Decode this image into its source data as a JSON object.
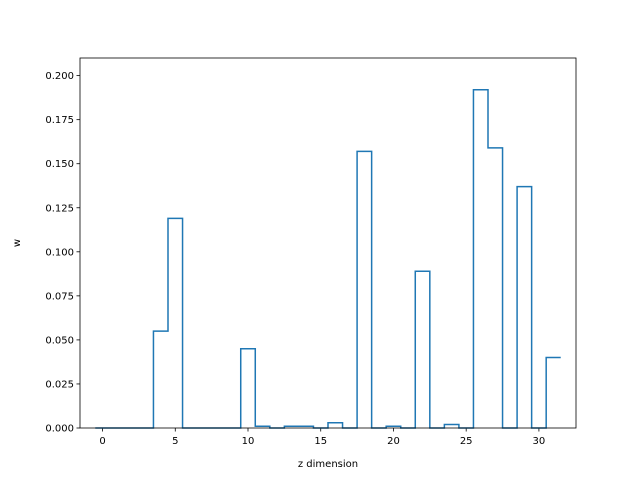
{
  "chart_data": {
    "type": "bar",
    "style": "step-outline",
    "xlabel": "z dimension",
    "ylabel": "w",
    "xlim": [
      -1.55,
      32.55
    ],
    "ylim": [
      0,
      0.21
    ],
    "xticks": [
      0,
      5,
      10,
      15,
      20,
      25,
      30
    ],
    "xtick_labels": [
      "0",
      "5",
      "10",
      "15",
      "20",
      "25",
      "30"
    ],
    "yticks": [
      0.0,
      0.025,
      0.05,
      0.075,
      0.1,
      0.125,
      0.15,
      0.175,
      0.2
    ],
    "ytick_labels": [
      "0.000",
      "0.025",
      "0.050",
      "0.075",
      "0.100",
      "0.125",
      "0.150",
      "0.175",
      "0.200"
    ],
    "x": [
      0,
      1,
      2,
      3,
      4,
      5,
      6,
      7,
      8,
      9,
      10,
      11,
      12,
      13,
      14,
      15,
      16,
      17,
      18,
      19,
      20,
      21,
      22,
      23,
      24,
      25,
      26,
      27,
      28,
      29,
      30,
      31
    ],
    "values": [
      0,
      0,
      0,
      0,
      0.055,
      0.119,
      0,
      0,
      0,
      0,
      0.045,
      0.001,
      0,
      0.001,
      0.001,
      0,
      0.003,
      0,
      0.157,
      0,
      0.001,
      0,
      0.089,
      0,
      0.002,
      0,
      0.192,
      0.159,
      0,
      0.137,
      0,
      0.04
    ],
    "grid": false,
    "legend": "none",
    "color": "#1f77b4"
  }
}
